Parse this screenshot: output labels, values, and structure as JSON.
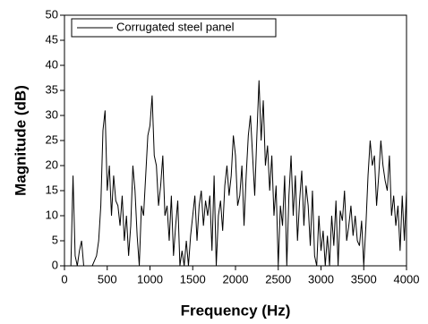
{
  "chart_data": {
    "type": "line",
    "x_label": "Frequency (Hz)",
    "y_label": "Magnitude (dB)",
    "xlim": [
      0,
      4000
    ],
    "ylim": [
      0,
      50
    ],
    "xticks": [
      0,
      500,
      1000,
      1500,
      2000,
      2500,
      3000,
      3500,
      4000
    ],
    "yticks": [
      0,
      5,
      10,
      15,
      20,
      25,
      30,
      35,
      40,
      45,
      50
    ],
    "legend": "upper left",
    "series": [
      {
        "name": "Corrugated steel panel",
        "color": "#000000",
        "x": [
          0,
          25,
          50,
          75,
          100,
          125,
          150,
          175,
          200,
          225,
          250,
          275,
          300,
          325,
          350,
          375,
          400,
          425,
          450,
          475,
          500,
          525,
          550,
          575,
          600,
          625,
          650,
          675,
          700,
          725,
          750,
          775,
          800,
          825,
          850,
          875,
          900,
          925,
          950,
          975,
          1000,
          1025,
          1050,
          1075,
          1100,
          1125,
          1150,
          1175,
          1200,
          1225,
          1250,
          1275,
          1300,
          1325,
          1350,
          1375,
          1400,
          1425,
          1450,
          1475,
          1500,
          1525,
          1550,
          1575,
          1600,
          1625,
          1650,
          1675,
          1700,
          1725,
          1750,
          1775,
          1800,
          1825,
          1850,
          1875,
          1900,
          1925,
          1950,
          1975,
          2000,
          2025,
          2050,
          2075,
          2100,
          2125,
          2150,
          2175,
          2200,
          2225,
          2250,
          2275,
          2300,
          2325,
          2350,
          2375,
          2400,
          2425,
          2450,
          2475,
          2500,
          2525,
          2550,
          2575,
          2600,
          2625,
          2650,
          2675,
          2700,
          2725,
          2750,
          2775,
          2800,
          2825,
          2850,
          2875,
          2900,
          2925,
          2950,
          2975,
          3000,
          3025,
          3050,
          3075,
          3100,
          3125,
          3150,
          3175,
          3200,
          3225,
          3250,
          3275,
          3300,
          3325,
          3350,
          3375,
          3400,
          3425,
          3450,
          3475,
          3500,
          3525,
          3550,
          3575,
          3600,
          3625,
          3650,
          3675,
          3700,
          3725,
          3750,
          3775,
          3800,
          3825,
          3850,
          3875,
          3900,
          3925,
          3950,
          3975,
          4000
        ],
        "values": [
          0,
          0,
          0,
          0,
          18,
          2,
          0,
          3,
          5,
          0,
          0,
          0,
          0,
          0,
          1,
          2,
          5,
          12,
          27,
          31,
          15,
          20,
          10,
          18,
          13,
          12,
          8,
          14,
          5,
          10,
          2,
          8,
          20,
          15,
          6,
          0,
          12,
          10,
          18,
          26,
          28,
          34,
          22,
          20,
          12,
          16,
          22,
          10,
          12,
          5,
          14,
          2,
          8,
          13,
          0,
          3,
          0,
          5,
          0,
          6,
          10,
          14,
          5,
          12,
          15,
          8,
          13,
          10,
          14,
          3,
          18,
          0,
          10,
          13,
          7,
          16,
          20,
          14,
          18,
          26,
          22,
          12,
          14,
          20,
          8,
          18,
          26,
          30,
          22,
          14,
          26,
          37,
          25,
          33,
          20,
          24,
          15,
          22,
          10,
          16,
          0,
          12,
          8,
          18,
          0,
          14,
          22,
          10,
          18,
          5,
          13,
          19,
          8,
          16,
          12,
          4,
          15,
          2,
          0,
          10,
          3,
          7,
          0,
          6,
          0,
          10,
          4,
          13,
          0,
          11,
          9,
          15,
          5,
          8,
          12,
          6,
          10,
          5,
          4,
          9,
          0,
          8,
          18,
          25,
          20,
          22,
          12,
          18,
          25,
          20,
          17,
          15,
          22,
          10,
          14,
          8,
          12,
          3,
          14,
          5,
          15
        ]
      }
    ]
  }
}
